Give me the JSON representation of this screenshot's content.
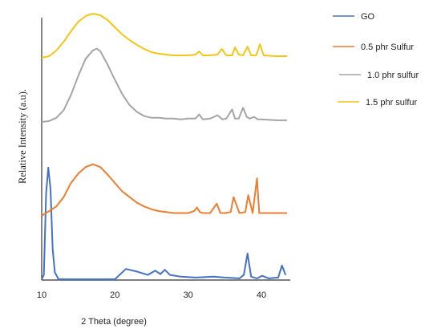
{
  "chart_data": {
    "type": "line",
    "title": "",
    "xlabel": "2 Theta (degree)",
    "ylabel": "Relative  Intensity  (a.u).",
    "xlim": [
      10,
      43.5
    ],
    "xticks": [
      10,
      20,
      30,
      40
    ],
    "y_ticks_shown": false,
    "grid": false,
    "legend": "right",
    "series": [
      {
        "name": "GO",
        "color": "#4472c4",
        "x": [
          10,
          10.3,
          10.6,
          10.9,
          11.2,
          11.5,
          11.8,
          12.3,
          15,
          20,
          21.5,
          23,
          24.5,
          25.5,
          26.2,
          26.8,
          27.5,
          29,
          31,
          33.5,
          35,
          37,
          37.6,
          38.1,
          38.6,
          39.4,
          40.1,
          41,
          42.3,
          42.8,
          43.3
        ],
        "y": [
          0,
          5,
          100,
          130,
          105,
          35,
          8,
          0,
          0,
          0,
          12,
          9,
          5,
          10,
          6,
          11,
          5,
          3,
          2,
          3,
          2,
          1,
          5,
          30,
          3,
          1,
          4,
          1,
          2,
          16,
          5
        ]
      },
      {
        "name": "0.5 phr Sulfur",
        "color": "#ed7d31",
        "x": [
          10,
          11,
          12,
          13,
          14,
          15,
          16,
          17,
          18,
          19,
          20,
          21,
          22,
          23,
          24,
          25,
          26,
          27,
          28,
          29,
          30,
          30.8,
          31.2,
          31.6,
          32,
          33,
          33.9,
          34.4,
          35,
          35.8,
          36.2,
          37,
          37.8,
          38.2,
          38.8,
          39.4,
          39.7,
          40.2,
          42,
          43.5
        ],
        "y": [
          0,
          5,
          10,
          20,
          35,
          45,
          52,
          55,
          52,
          44,
          35,
          26,
          20,
          14,
          10,
          7,
          5,
          4,
          3,
          3,
          3,
          5,
          9,
          4,
          3,
          3,
          13,
          3,
          3,
          4,
          20,
          3,
          4,
          22,
          3,
          40,
          3,
          3,
          3,
          3
        ]
      },
      {
        "name": "1.0 phr sulfur",
        "color": "#a5a5a5",
        "x": [
          10,
          11,
          12,
          13,
          14,
          15,
          16,
          17,
          17.5,
          18,
          19,
          20,
          21,
          22,
          23,
          24,
          25,
          26,
          27,
          28,
          29,
          30,
          31,
          31.5,
          32,
          33,
          34,
          34.7,
          35.2,
          36,
          36.4,
          36.9,
          37.5,
          38,
          38.4,
          39,
          39.5,
          40,
          42,
          43.5
        ],
        "y": [
          0,
          1,
          5,
          14,
          32,
          55,
          75,
          85,
          87,
          84,
          68,
          50,
          33,
          20,
          12,
          7,
          5,
          5,
          4,
          4,
          3,
          4,
          4,
          9,
          3,
          4,
          8,
          3,
          4,
          15,
          4,
          4,
          17,
          6,
          4,
          6,
          3,
          3,
          2,
          2
        ]
      },
      {
        "name": "1.5 phr sulfur",
        "color": "#f5c518",
        "x": [
          10,
          11,
          12,
          13,
          14,
          15,
          16,
          17,
          18,
          19,
          20,
          21,
          22,
          23,
          24,
          25,
          26,
          27,
          28,
          29,
          30,
          31,
          31.5,
          32,
          33,
          34,
          34.6,
          35.2,
          36,
          36.4,
          36.9,
          37.5,
          38.1,
          38.6,
          39.3,
          39.8,
          40.3,
          42,
          43.5
        ],
        "y": [
          0,
          2,
          9,
          20,
          33,
          45,
          52,
          55,
          53,
          47,
          38,
          29,
          22,
          16,
          11,
          7,
          5,
          4,
          3,
          3,
          3,
          4,
          8,
          3,
          3,
          4,
          11,
          3,
          3,
          13,
          4,
          3,
          14,
          3,
          3,
          17,
          3,
          2,
          2
        ]
      }
    ]
  }
}
